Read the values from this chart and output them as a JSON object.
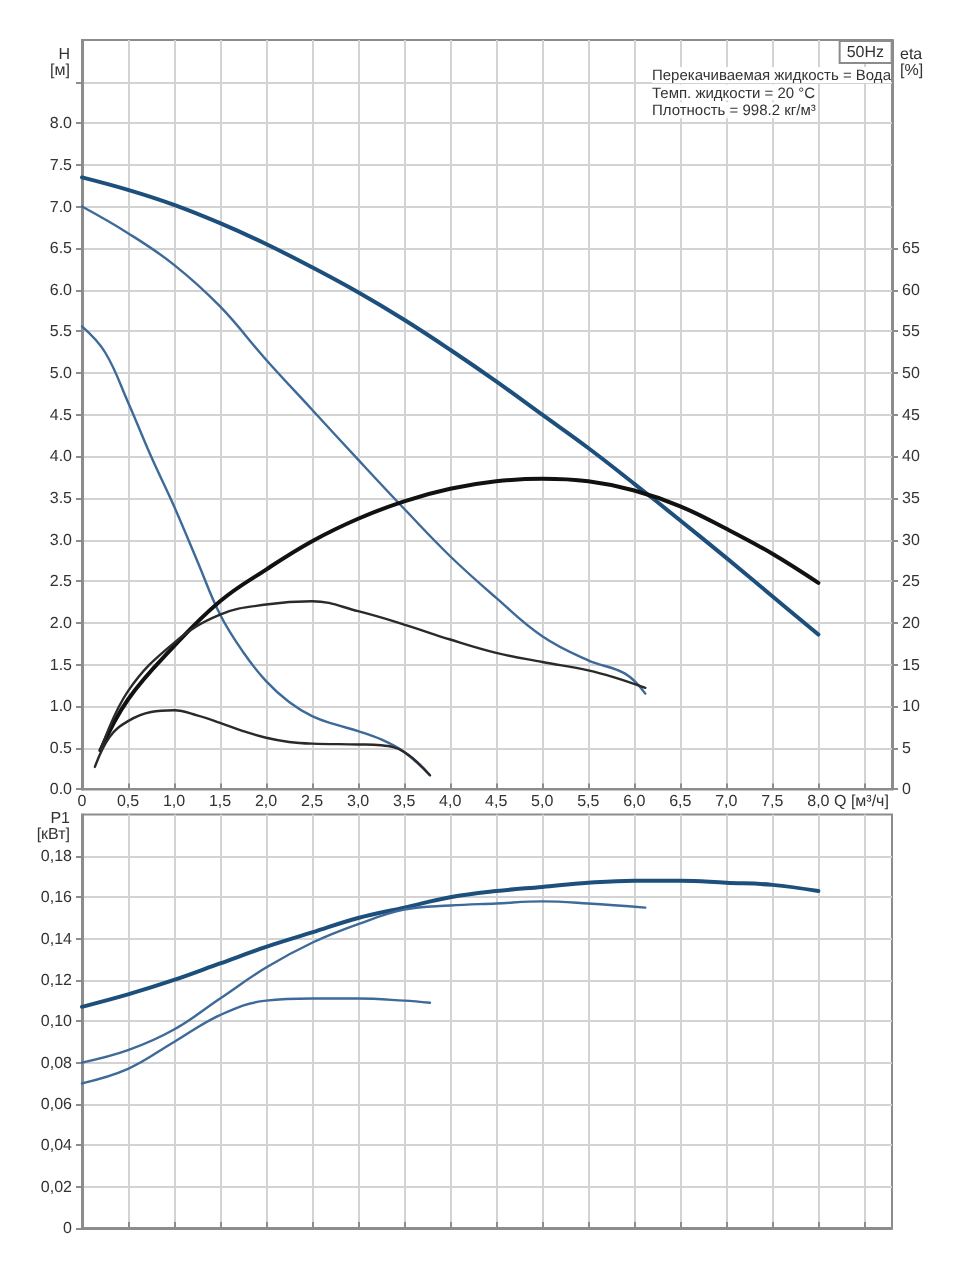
{
  "chart_data": [
    {
      "type": "line",
      "title": "50Hz",
      "xlabel": "Q [м³/ч]",
      "ylabel": "H [м]",
      "y2label": "eta [%]",
      "annotations": [
        "Перекачиваемая жидкость = Вода",
        "Темп. жидкости = 20 °C",
        "Плотность = 998.2 кг/м³"
      ],
      "xlim": [
        0,
        8.8
      ],
      "xticks": [
        0,
        {
          "value": 0.5,
          "label": "0,5"
        },
        {
          "value": 1,
          "label": "1,0"
        },
        {
          "value": 1.5,
          "label": "1,5"
        },
        {
          "value": 2,
          "label": "2,0"
        },
        {
          "value": 2.5,
          "label": "2,5"
        },
        {
          "value": 3,
          "label": "3,0"
        },
        {
          "value": 3.5,
          "label": "3,5"
        },
        {
          "value": 4,
          "label": "4,0"
        },
        {
          "value": 4.5,
          "label": "4,5"
        },
        {
          "value": 5,
          "label": "5,0"
        },
        {
          "value": 5.5,
          "label": "5,5"
        },
        {
          "value": 6,
          "label": "6,0"
        },
        {
          "value": 6.5,
          "label": "6,5"
        },
        {
          "value": 7,
          "label": "7,0"
        },
        {
          "value": 7.5,
          "label": "7,5"
        },
        {
          "value": 8,
          "label": "8,0"
        },
        {
          "value": 8.5,
          "label": null
        }
      ],
      "ylim": [
        0,
        9
      ],
      "yticks": [
        {
          "value": 0,
          "label": "0.0"
        },
        0.5,
        {
          "value": 1,
          "label": "1.0"
        },
        1.5,
        {
          "value": 2,
          "label": "2.0"
        },
        2.5,
        {
          "value": 3,
          "label": "3.0"
        },
        3.5,
        {
          "value": 4,
          "label": "4.0"
        },
        4.5,
        {
          "value": 5,
          "label": "5.0"
        },
        5.5,
        {
          "value": 6,
          "label": "6.0"
        },
        6.5,
        {
          "value": 7,
          "label": "7.0"
        },
        7.5,
        {
          "value": 8,
          "label": "8.0"
        },
        {
          "value": 8.5,
          "label": null
        }
      ],
      "y2lim": [
        0,
        90
      ],
      "y2ticks": [
        0,
        5,
        10,
        15,
        20,
        25,
        30,
        35,
        40,
        45,
        50,
        55,
        60,
        65
      ],
      "grid": true,
      "marker": "none",
      "series": [
        {
          "color": "#1c4f7c",
          "x": [
            0,
            0.5,
            1,
            1.5,
            2,
            2.5,
            3,
            3.5,
            4,
            4.5,
            5,
            5.5,
            6,
            6.5,
            7,
            7.5,
            8
          ],
          "values": [
            7.35,
            7.2,
            7.02,
            6.8,
            6.55,
            6.27,
            5.97,
            5.64,
            5.28,
            4.9,
            4.5,
            4.1,
            3.67,
            3.23,
            2.78,
            2.32,
            1.86
          ]
        },
        {
          "color": "#3d6a98",
          "x": [
            0,
            0.5,
            1,
            1.5,
            2,
            2.5,
            3,
            3.5,
            4,
            4.5,
            5,
            5.5,
            5.9,
            6.12
          ],
          "values": [
            7.0,
            6.68,
            6.3,
            5.8,
            5.16,
            4.56,
            3.96,
            3.37,
            2.8,
            2.3,
            1.84,
            1.55,
            1.39,
            1.15
          ]
        },
        {
          "color": "#3d6a98",
          "x": [
            0,
            0.25,
            0.5,
            0.75,
            1,
            1.25,
            1.5,
            1.75,
            2,
            2.25,
            2.5,
            2.75,
            3,
            3.25,
            3.5,
            3.78
          ],
          "values": [
            5.56,
            5.25,
            4.65,
            4.0,
            3.4,
            2.75,
            2.1,
            1.65,
            1.3,
            1.05,
            0.88,
            0.78,
            0.7,
            0.6,
            0.45,
            0.17
          ]
        },
        {
          "color": "#111111",
          "axis": "y2",
          "x": [
            0.2,
            0.5,
            1,
            1.5,
            2,
            2.5,
            3,
            3.5,
            4,
            4.5,
            5,
            5.5,
            6,
            6.5,
            7,
            7.5,
            8
          ],
          "values": [
            4.7,
            10.8,
            17.2,
            22.6,
            26.4,
            29.8,
            32.5,
            34.6,
            36.1,
            37,
            37.3,
            37,
            35.9,
            34,
            31.3,
            28.3,
            24.8
          ]
        },
        {
          "color": "#2a2a2a",
          "axis": "y2",
          "x": [
            0.2,
            0.5,
            1,
            1.5,
            2,
            2.5,
            3,
            3.5,
            4,
            4.5,
            5,
            5.5,
            5.8,
            6.12
          ],
          "values": [
            4.7,
            11.8,
            17.6,
            21,
            22.2,
            22.6,
            21.4,
            19.8,
            18,
            16.4,
            15.3,
            14.3,
            13.4,
            12.2
          ]
        },
        {
          "color": "#2a2a2a",
          "axis": "y2",
          "x": [
            0.14,
            0.3,
            0.5,
            0.75,
            1,
            1.25,
            1.5,
            1.75,
            2,
            2.25,
            2.5,
            3,
            3.25,
            3.5,
            3.78
          ],
          "values": [
            2.7,
            6.3,
            8.2,
            9.3,
            9.5,
            8.9,
            8,
            7,
            6.2,
            5.7,
            5.5,
            5.4,
            5.3,
            4.5,
            1.7
          ]
        }
      ]
    },
    {
      "type": "line",
      "ylabel": "P1 [кВт]",
      "tick_labels": "y",
      "xlim": [
        0,
        8.8
      ],
      "xticks": [
        0,
        0.5,
        1,
        1.5,
        2,
        2.5,
        3,
        3.5,
        4,
        4.5,
        5,
        5.5,
        6,
        6.5,
        7,
        7.5,
        8,
        8.5
      ],
      "ylim": [
        0,
        0.2
      ],
      "yticks": [
        0,
        {
          "value": 0.02,
          "label": "0,02"
        },
        {
          "value": 0.04,
          "label": "0,04"
        },
        {
          "value": 0.06,
          "label": "0,06"
        },
        {
          "value": 0.08,
          "label": "0,08"
        },
        {
          "value": 0.1,
          "label": "0,10"
        },
        {
          "value": 0.12,
          "label": "0,12"
        },
        {
          "value": 0.14,
          "label": "0,14"
        },
        {
          "value": 0.16,
          "label": "0,16"
        },
        {
          "value": 0.18,
          "label": "0,18"
        }
      ],
      "grid": true,
      "marker": "none",
      "series": [
        {
          "color": "#1c4f7c",
          "x": [
            0,
            0.5,
            1,
            1.5,
            2,
            2.5,
            3,
            3.5,
            4,
            4.5,
            5,
            5.5,
            6,
            6.5,
            7,
            7.5,
            8
          ],
          "values": [
            0.107,
            0.113,
            0.12,
            0.128,
            0.136,
            0.143,
            0.15,
            0.155,
            0.16,
            0.163,
            0.165,
            0.167,
            0.168,
            0.168,
            0.167,
            0.166,
            0.163
          ]
        },
        {
          "color": "#3d6a98",
          "x": [
            0,
            0.5,
            1,
            1.5,
            2,
            2.5,
            3,
            3.5,
            4,
            4.5,
            5,
            5.5,
            6.12
          ],
          "values": [
            0.08,
            0.086,
            0.096,
            0.111,
            0.126,
            0.138,
            0.147,
            0.154,
            0.156,
            0.157,
            0.158,
            0.157,
            0.155
          ]
        },
        {
          "color": "#3d6a98",
          "x": [
            0,
            0.5,
            1,
            1.5,
            2,
            2.5,
            3,
            3.5,
            3.78
          ],
          "values": [
            0.07,
            0.077,
            0.09,
            0.103,
            0.11,
            0.111,
            0.111,
            0.11,
            0.109
          ]
        }
      ]
    }
  ]
}
